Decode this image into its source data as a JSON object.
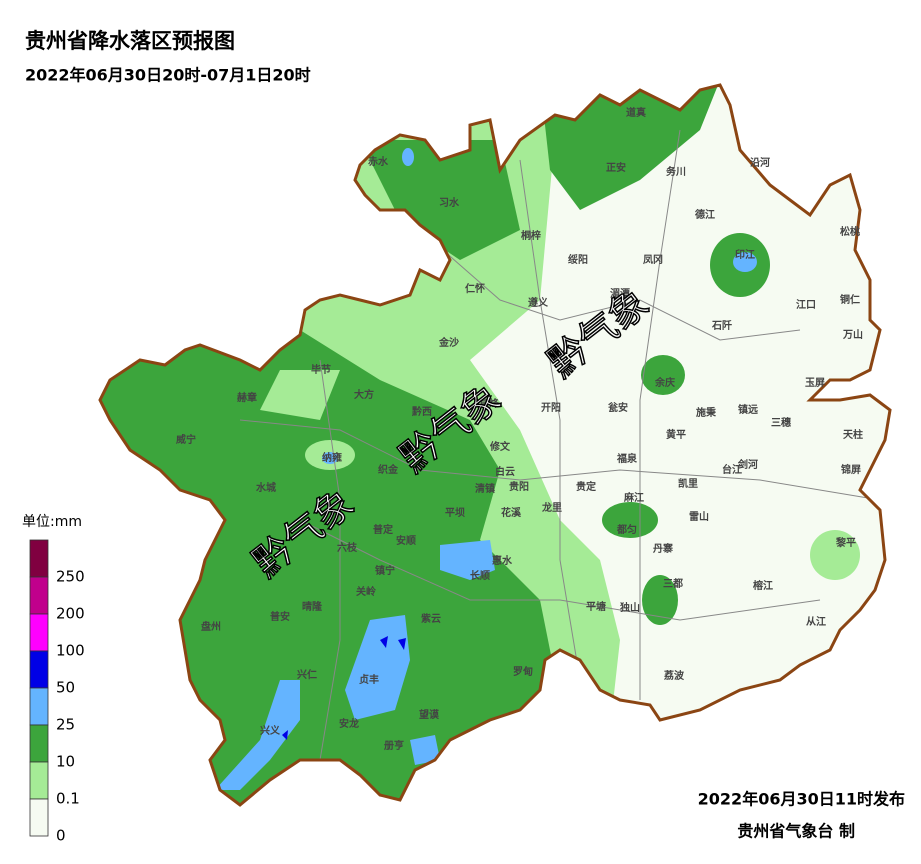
{
  "title": "贵州省降水落区预报图",
  "subtitle": "2022年06月30日20时-07月1日20时",
  "issued": "2022年06月30日11时发布",
  "issuer": "贵州省气象台 制",
  "watermark": "黔气象",
  "legend": {
    "title": "单位:mm",
    "colors": [
      "#800040",
      "#c0008c",
      "#ff00ff",
      "#0000e6",
      "#64b4ff",
      "#3ca53c",
      "#a5eb96",
      "#f6fbf2"
    ],
    "labels": [
      "250",
      "200",
      "100",
      "50",
      "25",
      "10",
      "0.1",
      "0"
    ]
  },
  "places": [
    "赤水",
    "习水",
    "道真",
    "正安",
    "务川",
    "沿河",
    "桐梓",
    "德江",
    "松桃",
    "绥阳",
    "凤冈",
    "印江",
    "仁怀",
    "遵义",
    "湄潭",
    "江口",
    "铜仁",
    "石阡",
    "万山",
    "金沙",
    "毕节",
    "大方",
    "余庆",
    "玉屏",
    "赫章",
    "黔西",
    "息烽",
    "开阳",
    "瓮安",
    "施秉",
    "镇远",
    "三穗",
    "天柱",
    "威宁",
    "修文",
    "黄平",
    "纳雍",
    "织金",
    "白云",
    "贵阳",
    "福泉",
    "台江",
    "剑河",
    "锦屏",
    "水城",
    "清镇",
    "贵定",
    "麻江",
    "凯里",
    "平坝",
    "花溪",
    "龙里",
    "雷山",
    "都匀",
    "普定",
    "安顺",
    "六枝",
    "丹寨",
    "黎平",
    "惠水",
    "镇宁",
    "长顺",
    "三都",
    "榕江",
    "关岭",
    "晴隆",
    "普安",
    "紫云",
    "平塘",
    "独山",
    "从江",
    "盘州",
    "兴仁",
    "贞丰",
    "罗甸",
    "荔波",
    "望谟",
    "兴义",
    "安龙",
    "册亨"
  ]
}
